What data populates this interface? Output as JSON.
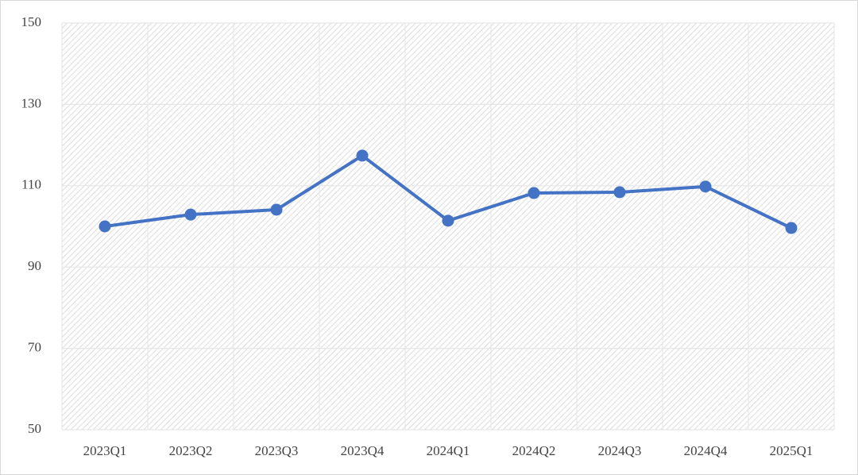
{
  "chart_data": {
    "type": "line",
    "categories": [
      "2023Q1",
      "2023Q2",
      "2023Q3",
      "2023Q4",
      "2024Q1",
      "2024Q2",
      "2024Q3",
      "2024Q4",
      "2025Q1"
    ],
    "series": [
      {
        "color": "#4472c4",
        "values": [
          100.0,
          102.9,
          104.1,
          117.4,
          101.4,
          108.2,
          108.4,
          109.8,
          99.6
        ]
      }
    ],
    "ylim": [
      50,
      150
    ],
    "yticks": [
      50,
      70,
      90,
      110,
      130,
      150
    ],
    "grid": true
  }
}
